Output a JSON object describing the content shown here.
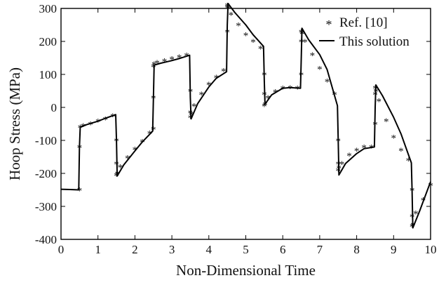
{
  "chart_data": {
    "type": "line",
    "title": "",
    "xlabel": "Non-Dimensional Time",
    "ylabel": "Hoop Stress (MPa)",
    "xlim": [
      0,
      10
    ],
    "ylim": [
      -400,
      300
    ],
    "xticks": [
      "0",
      "1",
      "2",
      "3",
      "4",
      "5",
      "6",
      "7",
      "8",
      "9",
      "10"
    ],
    "yticks": [
      "-400",
      "-300",
      "-200",
      "-100",
      "0",
      "100",
      "200",
      "300"
    ],
    "grid": false,
    "legend_position": "top-right",
    "colors": {
      "line": "#000000",
      "markers": "#444444",
      "axes": "#000000"
    },
    "series": [
      {
        "name": "Ref. [10]",
        "style": "markers",
        "marker": "asterisk",
        "x": [
          0.5,
          0.5,
          0.52,
          0.6,
          0.8,
          1.0,
          1.2,
          1.4,
          1.5,
          1.5,
          1.5,
          1.52,
          1.6,
          1.8,
          2.0,
          2.2,
          2.4,
          2.5,
          2.5,
          2.5,
          2.52,
          2.6,
          2.8,
          3.0,
          3.2,
          3.4,
          3.5,
          3.5,
          3.5,
          3.52,
          3.6,
          3.8,
          4.0,
          4.2,
          4.4,
          4.5,
          4.5,
          4.5,
          4.52,
          4.6,
          4.8,
          5.0,
          5.2,
          5.4,
          5.5,
          5.5,
          5.5,
          5.52,
          5.6,
          5.8,
          6.0,
          6.2,
          6.4,
          6.5,
          6.5,
          6.5,
          6.52,
          6.6,
          6.8,
          7.0,
          7.2,
          7.4,
          7.5,
          7.5,
          7.5,
          7.52,
          7.6,
          7.8,
          8.0,
          8.2,
          8.4,
          8.5,
          8.5,
          8.5,
          8.52,
          8.6,
          8.8,
          9.0,
          9.2,
          9.4,
          9.5,
          9.5,
          9.5,
          9.52,
          9.6,
          9.8,
          10.0
        ],
        "y": [
          -250,
          -120,
          -60,
          -55,
          -50,
          -42,
          -35,
          -25,
          -100,
          -170,
          -205,
          -200,
          -180,
          -152,
          -127,
          -103,
          -78,
          -65,
          30,
          125,
          132,
          136,
          142,
          148,
          153,
          158,
          50,
          -15,
          -30,
          -20,
          5,
          40,
          70,
          92,
          112,
          230,
          305,
          310,
          300,
          282,
          250,
          220,
          200,
          180,
          100,
          40,
          5,
          10,
          30,
          48,
          58,
          60,
          58,
          100,
          200,
          230,
          225,
          200,
          160,
          118,
          80,
          40,
          -100,
          -170,
          -190,
          -182,
          -170,
          -145,
          -130,
          -120,
          -120,
          -50,
          40,
          60,
          50,
          20,
          -40,
          -90,
          -130,
          -160,
          -250,
          -330,
          -360,
          -355,
          -320,
          -280,
          -235
        ]
      },
      {
        "name": "This solution",
        "style": "line",
        "x": [
          0,
          0.25,
          0.48,
          0.5,
          0.52,
          0.7,
          1.0,
          1.2,
          1.48,
          1.5,
          1.52,
          1.7,
          2.0,
          2.2,
          2.48,
          2.5,
          2.52,
          2.7,
          3.0,
          3.2,
          3.48,
          3.5,
          3.52,
          3.7,
          4.0,
          4.2,
          4.48,
          4.5,
          4.52,
          4.7,
          5.0,
          5.2,
          5.48,
          5.5,
          5.52,
          5.7,
          6.0,
          6.2,
          6.48,
          6.5,
          6.52,
          6.7,
          7.0,
          7.2,
          7.48,
          7.5,
          7.52,
          7.7,
          8.0,
          8.2,
          8.48,
          8.5,
          8.52,
          8.7,
          9.0,
          9.2,
          9.48,
          9.5,
          9.52,
          9.7,
          10.0
        ],
        "y": [
          -248,
          -249,
          -250,
          -120,
          -60,
          -52,
          -42,
          -33,
          -22,
          -100,
          -208,
          -174,
          -132,
          -105,
          -72,
          30,
          128,
          134,
          142,
          148,
          158,
          30,
          -35,
          12,
          62,
          88,
          108,
          250,
          315,
          288,
          250,
          220,
          185,
          80,
          10,
          38,
          58,
          60,
          58,
          150,
          240,
          205,
          160,
          115,
          5,
          -100,
          -205,
          -170,
          -140,
          -125,
          -120,
          0,
          68,
          35,
          -30,
          -80,
          -168,
          -250,
          -365,
          -315,
          -225
        ]
      }
    ]
  }
}
